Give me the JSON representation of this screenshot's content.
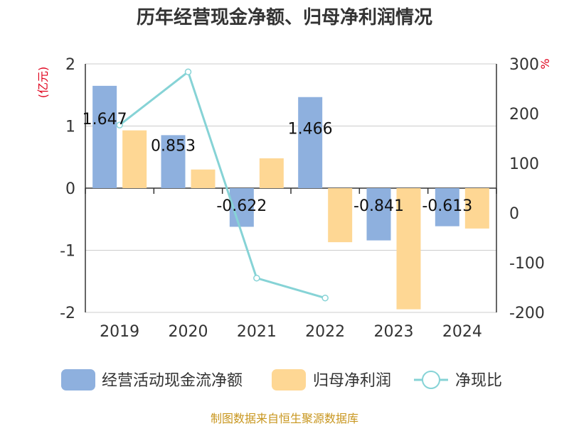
{
  "chart_data": {
    "type": "bar",
    "title": "历年经营现金净额、归母净利润情况",
    "categories": [
      "2019",
      "2020",
      "2021",
      "2022",
      "2023",
      "2024"
    ],
    "series": [
      {
        "name": "经营活动现金流净额",
        "type": "bar",
        "axis": "left",
        "color": "#8eb0de",
        "values": [
          1.647,
          0.853,
          -0.622,
          1.466,
          -0.841,
          -0.613
        ],
        "labels": [
          "1.647",
          "0.853",
          "-0.622",
          "1.466",
          "-0.841",
          "-0.613"
        ]
      },
      {
        "name": "归母净利润",
        "type": "bar",
        "axis": "left",
        "color": "#fed794",
        "values": [
          0.93,
          0.3,
          0.48,
          -0.87,
          -1.95,
          -0.65
        ]
      },
      {
        "name": "净现比",
        "type": "line",
        "axis": "right",
        "color": "#86d3d6",
        "values": [
          177,
          284,
          -131,
          -171,
          null,
          null
        ]
      }
    ],
    "y_left": {
      "unit": "(亿元)",
      "ylim": [
        -2,
        2
      ],
      "ticks": [
        -2,
        -1,
        0,
        1,
        2
      ]
    },
    "y_right": {
      "unit": "%",
      "ylim": [
        -200,
        300
      ],
      "ticks": [
        -200,
        -100,
        0,
        100,
        200,
        300
      ]
    },
    "grid": true,
    "legend_position": "bottom"
  },
  "source": "制图数据来自恒生聚源数据库"
}
